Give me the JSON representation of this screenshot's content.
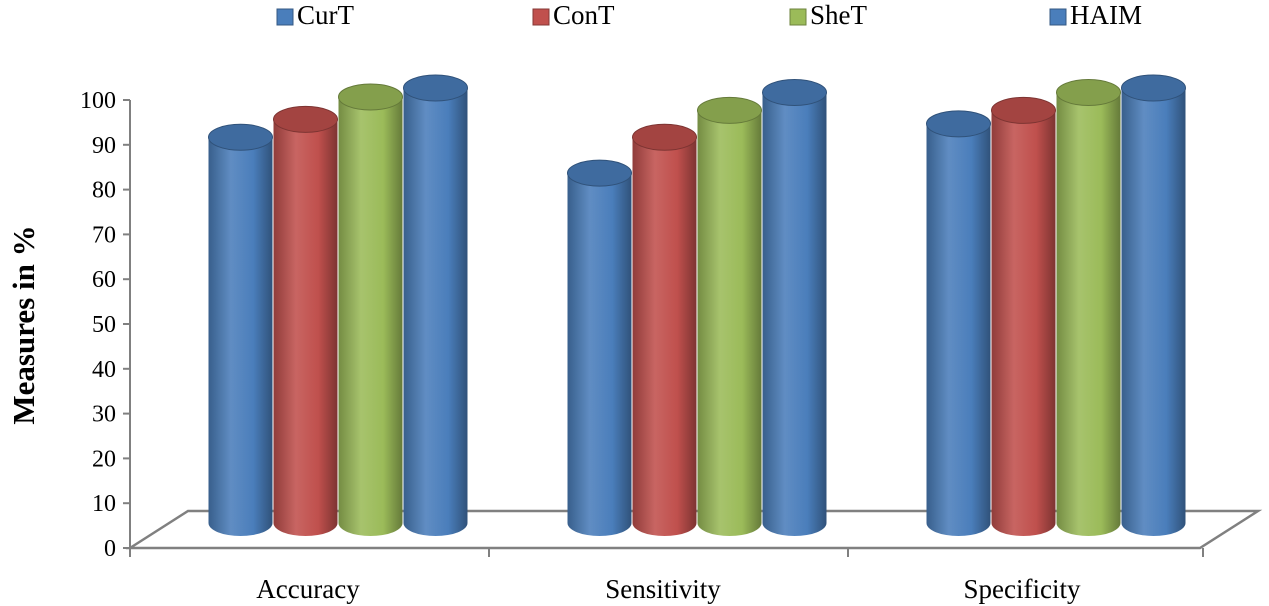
{
  "chart_data": {
    "type": "bar",
    "style": "3d-cylinder",
    "title": "",
    "xlabel": "",
    "ylabel": "Measures in %",
    "ylim": [
      0,
      100
    ],
    "yticks": [
      0,
      10,
      20,
      30,
      40,
      50,
      60,
      70,
      80,
      90,
      100
    ],
    "grid": false,
    "legend_position": "top",
    "categories": [
      "Accuracy",
      "Sensitivity",
      "Specificity"
    ],
    "series": [
      {
        "name": "CurT",
        "color": "#4a7ebb",
        "values": [
          89,
          81,
          92
        ]
      },
      {
        "name": "ConT",
        "color": "#c0504d",
        "values": [
          93,
          89,
          95
        ]
      },
      {
        "name": "SheT",
        "color": "#9bbb59",
        "values": [
          98,
          95,
          99
        ]
      },
      {
        "name": "HAIM",
        "color": "#4a7ebb",
        "values": [
          100,
          99,
          100
        ]
      }
    ]
  }
}
